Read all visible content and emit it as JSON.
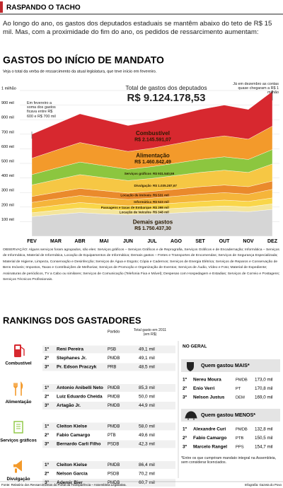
{
  "header": {
    "title": "RASPANDO O TACHO",
    "intro": "Ao longo do ano, os gastos dos deputados estaduais se mantêm abaixo do teto de R$ 15 mil. Mas, com a proximidade do fim do ano, os pedidos de ressarcimento aumentam:"
  },
  "chart_data": {
    "type": "stacked_area",
    "title": "GASTOS DO INÍCIO DE MANDATO",
    "subtitle": "Veja o total da verba de ressarcimento da atual legislatura, que teve início em fevereiro.",
    "categories": [
      "FEV",
      "MAR",
      "ABR",
      "MAI",
      "JUN",
      "JUL",
      "AGO",
      "SET",
      "OUT",
      "NOV",
      "DEZ"
    ],
    "ylim": [
      0,
      1000
    ],
    "yticks": [
      {
        "value": 100,
        "label": "100 mil"
      },
      {
        "value": 200,
        "label": "200 mil"
      },
      {
        "value": 300,
        "label": "300 mil"
      },
      {
        "value": 400,
        "label": "400 mil"
      },
      {
        "value": 500,
        "label": "500 mil"
      },
      {
        "value": 600,
        "label": "600 mil"
      },
      {
        "value": 700,
        "label": "700 mil"
      },
      {
        "value": 800,
        "label": "800 mil"
      },
      {
        "value": 900,
        "label": "900 mil"
      },
      {
        "value": 1000,
        "label": "1 milhão"
      }
    ],
    "grid": true,
    "series": [
      {
        "name": "Demais gastos",
        "label": "R$ 1.750.437,30",
        "color": "#d6d6d6",
        "values": [
          134,
          149,
          162,
          153,
          147,
          152,
          160,
          168,
          174,
          168,
          184
        ]
      },
      {
        "name": "Locação de Veículos",
        "label": "R$ 348 mil",
        "color": "#f4e59c",
        "values": [
          27,
          29,
          32,
          31,
          29,
          30,
          32,
          33,
          34,
          33,
          38
        ]
      },
      {
        "name": "Passagens e taxas de Embarque",
        "label": "R$ 398 mil",
        "color": "#f9d64a",
        "values": [
          31,
          34,
          37,
          35,
          33,
          35,
          36,
          38,
          40,
          38,
          41
        ]
      },
      {
        "name": "Informática",
        "label": "R$ 523 mil",
        "color": "#f5b53a",
        "values": [
          40,
          44,
          48,
          46,
          43,
          45,
          47,
          50,
          51,
          50,
          59
        ]
      },
      {
        "name": "Locação de Imóveis",
        "label": "R$ 531 mil",
        "color": "#ea8a2c",
        "values": [
          41,
          45,
          49,
          47,
          44,
          46,
          48,
          51,
          52,
          51,
          57
        ]
      },
      {
        "name": "Divulgação",
        "label": "R$ 1.035.287,67",
        "color": "#f6c744",
        "values": [
          79,
          87,
          95,
          90,
          86,
          89,
          94,
          98,
          102,
          98,
          117
        ]
      },
      {
        "name": "Serviços gráficos",
        "label": "R$ 931.540,59",
        "color": "#8cc63f",
        "values": [
          71,
          79,
          86,
          82,
          78,
          81,
          85,
          89,
          92,
          89,
          99
        ]
      },
      {
        "name": "Alimentação",
        "label": "R$ 1.460.842,49",
        "color": "#f39a2b",
        "values": [
          112,
          123,
          134,
          128,
          122,
          126,
          133,
          139,
          144,
          139,
          161
        ]
      },
      {
        "name": "Combustível",
        "label": "R$ 2.145.591,07",
        "color": "#d7282f",
        "values": [
          165,
          180,
          197,
          188,
          178,
          186,
          195,
          204,
          211,
          204,
          238
        ]
      }
    ],
    "total_title": "Total de gastos dos deputados",
    "total_value": "R$ 9.124.178,53",
    "note_start": "Em fevereiro a soma dos gastos ficava entre R$ 600 e R$ 700 mil",
    "note_end": "Já em dezembro as contas quase chegaram a R$ 1 milhão",
    "observation": "OBSERVAÇÃO: Alguns serviços foram agrupados, são eles: Serviços gráficos – Serviços Gráficos e de Reprografia, Serviços Gráficos e de Encadernação; Informática – Serviços de Informática, Material de Informática, Locação de Equipamentos de Informática; Demais gastos – Fretes e Transportes de Encomendas; Serviços de Segurança Especializada; Material de Higiene, Limpeza, Conservação e Desinfecção; Serviços de Água e Esgoto; Cópia e Cadernos; Serviços de Energia Elétrica; Serviços de Reparos e Conservação de Bens Imóveis; Impostos, Taxas e Contribuições de Melhorias; Serviços de Promoção e Organização de Eventos; Serviços de Áudio, Vídeo e Foto; Material de Expediente; Assinaturas de periódicos, TV a Cabo ou similares; Serviços de Comunicação (Telefonia Fixa e Móvel); Despesas com Hospedagem e Estadias; Serviços de Correio e Postagens; Serviços Técnicos Profissionais."
  },
  "rankings": {
    "title": "RANKINGS DOS GASTADORES",
    "col_party": "Partido",
    "col_total": "Total gasto em 2011 (em R$)",
    "categories": [
      {
        "name": "Combustível",
        "entries": [
          {
            "rank": "1º",
            "name": "Reni Pereira",
            "party": "PSB",
            "total": "49,1 mil"
          },
          {
            "rank": "2º",
            "name": "Stephanes Jr.",
            "party": "PMDB",
            "total": "49,1 mil"
          },
          {
            "rank": "3º",
            "name": "Pr. Edson Praczyk",
            "party": "PRB",
            "total": "48,5 mil"
          }
        ]
      },
      {
        "name": "Alimentação",
        "entries": [
          {
            "rank": "1º",
            "name": "Antonio Anibelli Neto",
            "party": "PMDB",
            "total": "85,3 mil"
          },
          {
            "rank": "2º",
            "name": "Luiz Eduardo Cheida",
            "party": "PMDB",
            "total": "50,0 mil"
          },
          {
            "rank": "3º",
            "name": "Artagão Jr.",
            "party": "PMDB",
            "total": "44,9 mil"
          }
        ]
      },
      {
        "name": "Serviços gráficos",
        "entries": [
          {
            "rank": "1º",
            "name": "Cleiton Kielse",
            "party": "PMDB",
            "total": "58,0 mil"
          },
          {
            "rank": "2º",
            "name": "Fabio Camargo",
            "party": "PTB",
            "total": "49,6 mil"
          },
          {
            "rank": "3º",
            "name": "Bernardo Carli Filho",
            "party": "PSDB",
            "total": "42,3 mil"
          }
        ]
      },
      {
        "name": "Divulgação",
        "entries": [
          {
            "rank": "1º",
            "name": "Cleiton Kielse",
            "party": "PMDB",
            "total": "86,4 mil"
          },
          {
            "rank": "2º",
            "name": "Nelson Garcia",
            "party": "PSDB",
            "total": "70,2 mil"
          },
          {
            "rank": "3º",
            "name": "Ademir Bier",
            "party": "PMDB",
            "total": "60,7 mil"
          }
        ]
      }
    ],
    "overall": {
      "title": "NO GERAL",
      "groups": [
        {
          "name": "Quem gastou MAIS*",
          "entries": [
            {
              "rank": "1º",
              "name": "Nereu Moura",
              "party": "PMDB",
              "total": "173,0 mil"
            },
            {
              "rank": "2º",
              "name": "Enio Verri",
              "party": "PT",
              "total": "170,8 mil"
            },
            {
              "rank": "3º",
              "name": "Nelson Justus",
              "party": "DEM",
              "total": "169,0 mil"
            }
          ]
        },
        {
          "name": "Quem gastou MENOS*",
          "entries": [
            {
              "rank": "1º",
              "name": "Alexandre Curi",
              "party": "PMDB",
              "total": "132,8 mil"
            },
            {
              "rank": "2º",
              "name": "Fabio Camargo",
              "party": "PTB",
              "total": "150,5 mil"
            },
            {
              "rank": "3º",
              "name": "Marcelo Rangel",
              "party": "PPS",
              "total": "154,7 mil"
            }
          ]
        }
      ],
      "note": "*Entre os que cumpriram mandato integral na Assembleia, sem considerar licenciados."
    }
  },
  "footer": {
    "source": "Fonte: Relatório dos Ressarcimentos do Portal da Transparência – Assembleia Legislativa.",
    "credit": "Infografia: Gazeta do Povo"
  }
}
